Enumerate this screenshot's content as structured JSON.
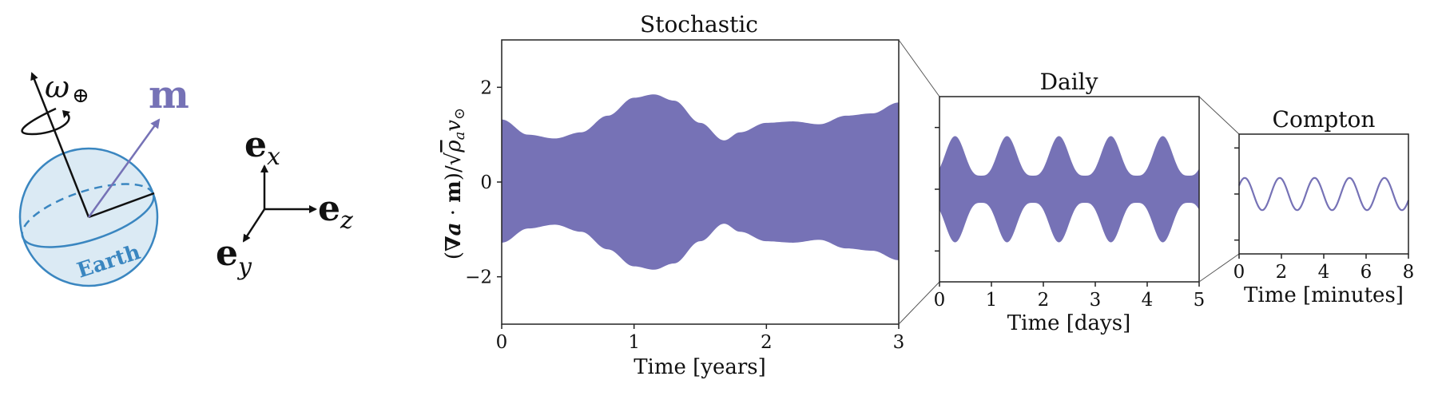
{
  "diagram": {
    "omega_label": "ω",
    "omega_sub": "⊕",
    "m_label": "m",
    "earth_label": "Earth",
    "ex_base": "e",
    "ex_sub": "x",
    "ey_base": "e",
    "ey_sub": "y",
    "ez_base": "e",
    "ez_sub": "z",
    "colors": {
      "earth_fill": "#dbeaf4",
      "earth_stroke": "#3a86c0",
      "m_color": "#7672b6"
    }
  },
  "ylabel": {
    "open": "(",
    "nabla": "∇",
    "a": "a",
    "dot": " · ",
    "m": "m",
    "close": ")/",
    "root": "√",
    "rho": "ρ",
    "rho_sub": "a",
    "v": "v",
    "v_sub": "⊙"
  },
  "chart_data": [
    {
      "type": "area",
      "title": "Stochastic",
      "xlabel": "Time [years]",
      "xlim": [
        0,
        3
      ],
      "ylim": [
        -3,
        3
      ],
      "xticks": [
        "0",
        "1",
        "2",
        "3"
      ],
      "yticks": [
        "−2",
        "0",
        "2"
      ],
      "ytick_values": [
        -2,
        0,
        2
      ],
      "color": "#7672b6",
      "envelope": {
        "x": [
          0,
          0.2,
          0.4,
          0.6,
          0.8,
          1.0,
          1.15,
          1.3,
          1.5,
          1.68,
          1.8,
          2.0,
          2.2,
          2.4,
          2.6,
          2.8,
          3.0
        ],
        "upper": [
          1.32,
          1.0,
          0.92,
          1.05,
          1.4,
          1.78,
          1.85,
          1.72,
          1.25,
          0.88,
          1.05,
          1.25,
          1.28,
          1.22,
          1.4,
          1.45,
          1.68
        ],
        "lower": [
          -1.28,
          -0.98,
          -0.9,
          -1.05,
          -1.42,
          -1.78,
          -1.85,
          -1.72,
          -1.25,
          -0.88,
          -1.05,
          -1.25,
          -1.28,
          -1.22,
          -1.4,
          -1.45,
          -1.65
        ]
      }
    },
    {
      "type": "area",
      "title": "Daily",
      "xlabel": "Time [days]",
      "xlim": [
        0,
        5
      ],
      "ylim": [
        -1.5,
        1.5
      ],
      "xticks": [
        "0",
        "1",
        "2",
        "3",
        "4",
        "5"
      ],
      "color": "#7672b6",
      "envelope": {
        "period_days": 1,
        "peak_days": [
          0.3,
          1.3,
          2.3,
          3.3,
          4.3
        ],
        "max": 0.86,
        "min": 0.22,
        "start": 0.45,
        "end": 0.45
      }
    },
    {
      "type": "line",
      "title": "Compton",
      "xlabel": "Time [minutes]",
      "xlim": [
        0,
        8
      ],
      "ylim": [
        -1.3,
        1.3
      ],
      "xticks": [
        "0",
        "2",
        "4",
        "6",
        "8"
      ],
      "color": "#7672b6",
      "series": {
        "amplitude": 0.35,
        "period_minutes": 1.65,
        "phase": 0.55
      }
    }
  ]
}
